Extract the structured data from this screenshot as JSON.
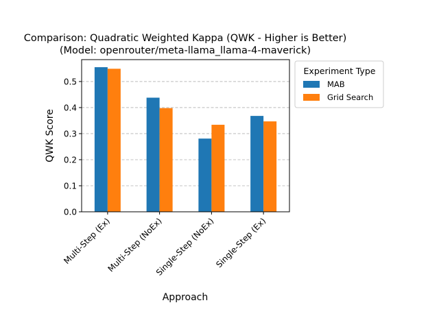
{
  "chart_data": {
    "type": "bar",
    "title_line1": "Comparison: Quadratic Weighted Kappa (QWK - Higher is Better)",
    "title_line2": "(Model: openrouter/meta-llama_llama-4-maverick)",
    "xlabel": "Approach",
    "ylabel": "QWK Score",
    "categories": [
      "Multi-Step (Ex)",
      "Multi-Step (NoEx)",
      "Single-Step (NoEx)",
      "Single-Step (Ex)"
    ],
    "series": [
      {
        "name": "MAB",
        "color": "#1f77b4",
        "values": [
          0.555,
          0.438,
          0.281,
          0.368
        ]
      },
      {
        "name": "Grid Search",
        "color": "#ff7f0e",
        "values": [
          0.549,
          0.398,
          0.334,
          0.347
        ]
      }
    ],
    "ylim": [
      0,
      0.584
    ],
    "yticks": [
      "0.0",
      "0.1",
      "0.2",
      "0.3",
      "0.4",
      "0.5"
    ],
    "ytick_values": [
      0,
      0.1,
      0.2,
      0.3,
      0.4,
      0.5
    ],
    "grid": "y-dashed",
    "legend": {
      "title": "Experiment Type",
      "placement": "outside-right"
    }
  }
}
